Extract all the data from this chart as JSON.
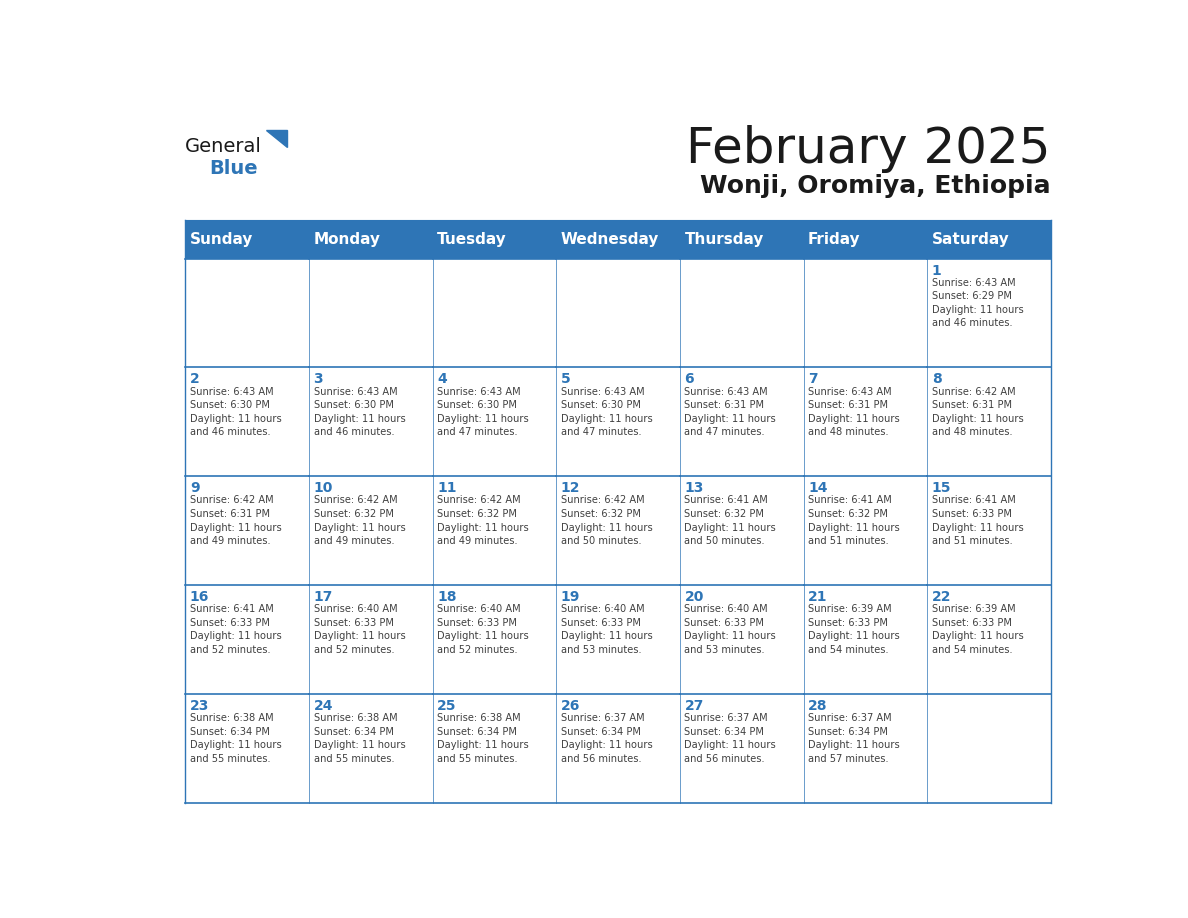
{
  "title": "February 2025",
  "subtitle": "Wonji, Oromiya, Ethiopia",
  "days_of_week": [
    "Sunday",
    "Monday",
    "Tuesday",
    "Wednesday",
    "Thursday",
    "Friday",
    "Saturday"
  ],
  "header_bg": "#2e75b6",
  "header_text": "#ffffff",
  "header_font_size": 11,
  "title_font_size": 36,
  "subtitle_font_size": 18,
  "cell_border_color": "#2e75b6",
  "day_num_color": "#2e75b6",
  "info_text_color": "#404040",
  "bg_color": "#ffffff",
  "logo_general_color": "#1a1a1a",
  "logo_blue_color": "#2e75b6",
  "weeks": [
    [
      {
        "day": null,
        "info": ""
      },
      {
        "day": null,
        "info": ""
      },
      {
        "day": null,
        "info": ""
      },
      {
        "day": null,
        "info": ""
      },
      {
        "day": null,
        "info": ""
      },
      {
        "day": null,
        "info": ""
      },
      {
        "day": 1,
        "info": "Sunrise: 6:43 AM\nSunset: 6:29 PM\nDaylight: 11 hours\nand 46 minutes."
      }
    ],
    [
      {
        "day": 2,
        "info": "Sunrise: 6:43 AM\nSunset: 6:30 PM\nDaylight: 11 hours\nand 46 minutes."
      },
      {
        "day": 3,
        "info": "Sunrise: 6:43 AM\nSunset: 6:30 PM\nDaylight: 11 hours\nand 46 minutes."
      },
      {
        "day": 4,
        "info": "Sunrise: 6:43 AM\nSunset: 6:30 PM\nDaylight: 11 hours\nand 47 minutes."
      },
      {
        "day": 5,
        "info": "Sunrise: 6:43 AM\nSunset: 6:30 PM\nDaylight: 11 hours\nand 47 minutes."
      },
      {
        "day": 6,
        "info": "Sunrise: 6:43 AM\nSunset: 6:31 PM\nDaylight: 11 hours\nand 47 minutes."
      },
      {
        "day": 7,
        "info": "Sunrise: 6:43 AM\nSunset: 6:31 PM\nDaylight: 11 hours\nand 48 minutes."
      },
      {
        "day": 8,
        "info": "Sunrise: 6:42 AM\nSunset: 6:31 PM\nDaylight: 11 hours\nand 48 minutes."
      }
    ],
    [
      {
        "day": 9,
        "info": "Sunrise: 6:42 AM\nSunset: 6:31 PM\nDaylight: 11 hours\nand 49 minutes."
      },
      {
        "day": 10,
        "info": "Sunrise: 6:42 AM\nSunset: 6:32 PM\nDaylight: 11 hours\nand 49 minutes."
      },
      {
        "day": 11,
        "info": "Sunrise: 6:42 AM\nSunset: 6:32 PM\nDaylight: 11 hours\nand 49 minutes."
      },
      {
        "day": 12,
        "info": "Sunrise: 6:42 AM\nSunset: 6:32 PM\nDaylight: 11 hours\nand 50 minutes."
      },
      {
        "day": 13,
        "info": "Sunrise: 6:41 AM\nSunset: 6:32 PM\nDaylight: 11 hours\nand 50 minutes."
      },
      {
        "day": 14,
        "info": "Sunrise: 6:41 AM\nSunset: 6:32 PM\nDaylight: 11 hours\nand 51 minutes."
      },
      {
        "day": 15,
        "info": "Sunrise: 6:41 AM\nSunset: 6:33 PM\nDaylight: 11 hours\nand 51 minutes."
      }
    ],
    [
      {
        "day": 16,
        "info": "Sunrise: 6:41 AM\nSunset: 6:33 PM\nDaylight: 11 hours\nand 52 minutes."
      },
      {
        "day": 17,
        "info": "Sunrise: 6:40 AM\nSunset: 6:33 PM\nDaylight: 11 hours\nand 52 minutes."
      },
      {
        "day": 18,
        "info": "Sunrise: 6:40 AM\nSunset: 6:33 PM\nDaylight: 11 hours\nand 52 minutes."
      },
      {
        "day": 19,
        "info": "Sunrise: 6:40 AM\nSunset: 6:33 PM\nDaylight: 11 hours\nand 53 minutes."
      },
      {
        "day": 20,
        "info": "Sunrise: 6:40 AM\nSunset: 6:33 PM\nDaylight: 11 hours\nand 53 minutes."
      },
      {
        "day": 21,
        "info": "Sunrise: 6:39 AM\nSunset: 6:33 PM\nDaylight: 11 hours\nand 54 minutes."
      },
      {
        "day": 22,
        "info": "Sunrise: 6:39 AM\nSunset: 6:33 PM\nDaylight: 11 hours\nand 54 minutes."
      }
    ],
    [
      {
        "day": 23,
        "info": "Sunrise: 6:38 AM\nSunset: 6:34 PM\nDaylight: 11 hours\nand 55 minutes."
      },
      {
        "day": 24,
        "info": "Sunrise: 6:38 AM\nSunset: 6:34 PM\nDaylight: 11 hours\nand 55 minutes."
      },
      {
        "day": 25,
        "info": "Sunrise: 6:38 AM\nSunset: 6:34 PM\nDaylight: 11 hours\nand 55 minutes."
      },
      {
        "day": 26,
        "info": "Sunrise: 6:37 AM\nSunset: 6:34 PM\nDaylight: 11 hours\nand 56 minutes."
      },
      {
        "day": 27,
        "info": "Sunrise: 6:37 AM\nSunset: 6:34 PM\nDaylight: 11 hours\nand 56 minutes."
      },
      {
        "day": 28,
        "info": "Sunrise: 6:37 AM\nSunset: 6:34 PM\nDaylight: 11 hours\nand 57 minutes."
      },
      {
        "day": null,
        "info": ""
      }
    ]
  ]
}
